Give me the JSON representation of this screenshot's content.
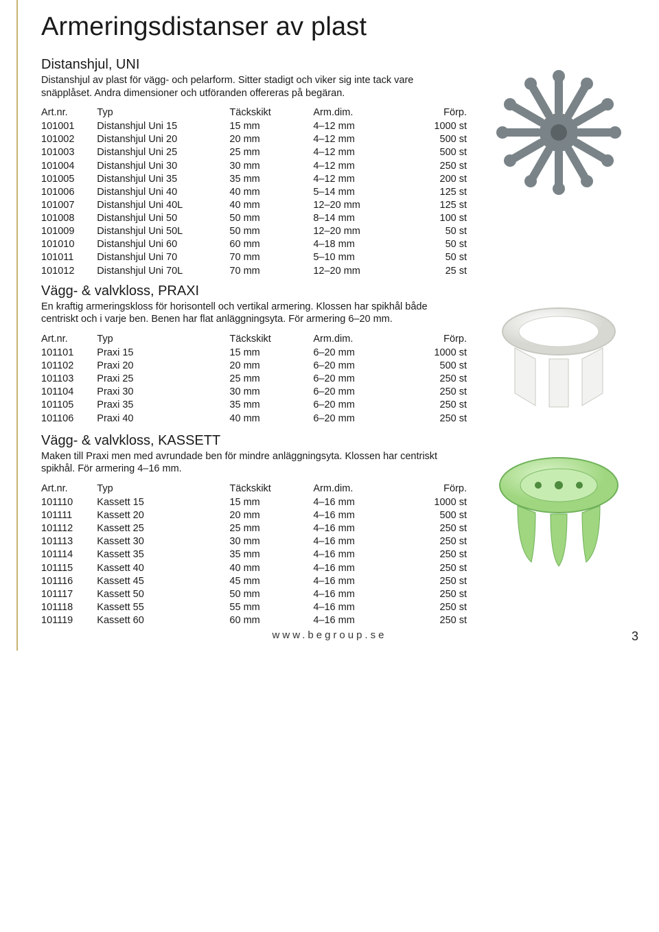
{
  "page": {
    "title": "Armeringsdistanser av plast",
    "footer_url": "www.begroup.se",
    "page_number": "3"
  },
  "headers": {
    "artnr": "Art.nr.",
    "typ": "Typ",
    "tackskikt": "Täckskikt",
    "armdim": "Arm.dim.",
    "forp": "Förp."
  },
  "sections": [
    {
      "heading": "Distanshjul, UNI",
      "desc": "Distanshjul av plast för vägg- och pelarform. Sitter stadigt och viker sig inte tack vare snäpplåset. Andra dimensioner och utföranden offereras på begäran.",
      "icon": "wheel",
      "rows": [
        {
          "a": "101001",
          "t": "Distanshjul Uni 15",
          "ts": "15 mm",
          "ad": "4–12 mm",
          "f": "1000 st"
        },
        {
          "a": "101002",
          "t": "Distanshjul Uni 20",
          "ts": "20 mm",
          "ad": "4–12 mm",
          "f": "500 st"
        },
        {
          "a": "101003",
          "t": "Distanshjul Uni 25",
          "ts": "25 mm",
          "ad": "4–12 mm",
          "f": "500 st"
        },
        {
          "a": "101004",
          "t": "Distanshjul Uni 30",
          "ts": "30 mm",
          "ad": "4–12 mm",
          "f": "250 st"
        },
        {
          "a": "101005",
          "t": "Distanshjul Uni 35",
          "ts": "35 mm",
          "ad": "4–12 mm",
          "f": "200 st"
        },
        {
          "a": "101006",
          "t": "Distanshjul Uni 40",
          "ts": "40 mm",
          "ad": "5–14 mm",
          "f": "125 st"
        },
        {
          "a": "101007",
          "t": "Distanshjul Uni 40L",
          "ts": "40 mm",
          "ad": "12–20 mm",
          "f": "125 st"
        },
        {
          "a": "101008",
          "t": "Distanshjul Uni 50",
          "ts": "50 mm",
          "ad": "8–14 mm",
          "f": "100 st"
        },
        {
          "a": "101009",
          "t": "Distanshjul Uni 50L",
          "ts": "50 mm",
          "ad": "12–20 mm",
          "f": "50 st"
        },
        {
          "a": "101010",
          "t": "Distanshjul Uni 60",
          "ts": "60 mm",
          "ad": "4–18 mm",
          "f": "50 st"
        },
        {
          "a": "101011",
          "t": "Distanshjul Uni 70",
          "ts": "70 mm",
          "ad": "5–10 mm",
          "f": "50 st"
        },
        {
          "a": "101012",
          "t": "Distanshjul Uni 70L",
          "ts": "70 mm",
          "ad": "12–20 mm",
          "f": "25 st"
        }
      ]
    },
    {
      "heading": "Vägg- & valvkloss, PRAXI",
      "desc": "En kraftig armeringskloss för horisontell och vertikal armering. Klossen har spikhål både centriskt och i varje ben. Benen har flat anläggningsyta. För armering 6–20 mm.",
      "icon": "praxi",
      "rows": [
        {
          "a": "101101",
          "t": "Praxi 15",
          "ts": "15 mm",
          "ad": "6–20 mm",
          "f": "1000 st"
        },
        {
          "a": "101102",
          "t": "Praxi 20",
          "ts": "20 mm",
          "ad": "6–20 mm",
          "f": "500 st"
        },
        {
          "a": "101103",
          "t": "Praxi 25",
          "ts": "25 mm",
          "ad": "6–20 mm",
          "f": "250 st"
        },
        {
          "a": "101104",
          "t": "Praxi 30",
          "ts": "30 mm",
          "ad": "6–20 mm",
          "f": "250 st"
        },
        {
          "a": "101105",
          "t": "Praxi 35",
          "ts": "35 mm",
          "ad": "6–20 mm",
          "f": "250 st"
        },
        {
          "a": "101106",
          "t": "Praxi 40",
          "ts": "40 mm",
          "ad": "6–20 mm",
          "f": "250 st"
        }
      ]
    },
    {
      "heading": "Vägg- & valvkloss, KASSETT",
      "desc": "Maken till Praxi men med avrundade ben för mindre anläggningsyta. Klossen har centriskt spikhål. För armering 4–16 mm.",
      "icon": "kassett",
      "rows": [
        {
          "a": "101110",
          "t": "Kassett 15",
          "ts": "15 mm",
          "ad": "4–16 mm",
          "f": "1000 st"
        },
        {
          "a": "101111",
          "t": "Kassett 20",
          "ts": "20 mm",
          "ad": "4–16 mm",
          "f": "500 st"
        },
        {
          "a": "101112",
          "t": "Kassett 25",
          "ts": "25 mm",
          "ad": "4–16 mm",
          "f": "250 st"
        },
        {
          "a": "101113",
          "t": "Kassett 30",
          "ts": "30 mm",
          "ad": "4–16 mm",
          "f": "250 st"
        },
        {
          "a": "101114",
          "t": "Kassett 35",
          "ts": "35 mm",
          "ad": "4–16 mm",
          "f": "250 st"
        },
        {
          "a": "101115",
          "t": "Kassett 40",
          "ts": "40 mm",
          "ad": "4–16 mm",
          "f": "250 st"
        },
        {
          "a": "101116",
          "t": "Kassett 45",
          "ts": "45 mm",
          "ad": "4–16 mm",
          "f": "250 st"
        },
        {
          "a": "101117",
          "t": "Kassett 50",
          "ts": "50 mm",
          "ad": "4–16 mm",
          "f": "250 st"
        },
        {
          "a": "101118",
          "t": "Kassett 55",
          "ts": "55 mm",
          "ad": "4–16 mm",
          "f": "250 st"
        },
        {
          "a": "101119",
          "t": "Kassett 60",
          "ts": "60 mm",
          "ad": "4–16 mm",
          "f": "250 st"
        }
      ]
    }
  ],
  "styles": {
    "heading_color": "#1a1a1a",
    "rule_color": "#c7b36f",
    "image_colors": {
      "wheel": "#7a8488",
      "praxi": "#f2f2f0",
      "kassett": "#9fd67f"
    }
  }
}
